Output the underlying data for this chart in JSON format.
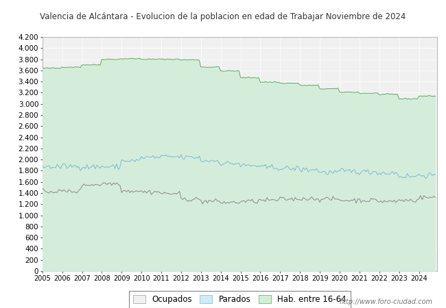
{
  "title": "Valencia de Alcántara - Evolucion de la poblacion en edad de Trabajar Noviembre de 2024",
  "title_color": "#333333",
  "ylabel": "",
  "xlabel": "",
  "ylim": [
    0,
    4200
  ],
  "yticks": [
    0,
    200,
    400,
    600,
    800,
    1000,
    1200,
    1400,
    1600,
    1800,
    2000,
    2200,
    2400,
    2600,
    2800,
    3000,
    3200,
    3400,
    3600,
    3800,
    4000,
    4200
  ],
  "years_annual": [
    2005,
    2006,
    2007,
    2008,
    2009,
    2010,
    2011,
    2012,
    2013,
    2014,
    2015,
    2016,
    2017,
    2018,
    2019,
    2020,
    2021,
    2022,
    2023,
    2024
  ],
  "hab1664_annual": [
    3640,
    3660,
    3700,
    3800,
    3810,
    3800,
    3800,
    3790,
    3660,
    3590,
    3470,
    3390,
    3370,
    3330,
    3270,
    3210,
    3190,
    3170,
    3090,
    3140
  ],
  "parados_annual": [
    1870,
    1880,
    1870,
    1870,
    1980,
    2040,
    2050,
    2040,
    1980,
    1930,
    1890,
    1860,
    1840,
    1820,
    1770,
    1790,
    1780,
    1760,
    1700,
    1720
  ],
  "ocupados_annual": [
    1430,
    1430,
    1550,
    1570,
    1440,
    1420,
    1390,
    1290,
    1250,
    1230,
    1250,
    1270,
    1290,
    1300,
    1290,
    1270,
    1270,
    1250,
    1270,
    1320
  ],
  "color_hab": "#d4edda",
  "color_parados": "#d0eaf8",
  "color_ocupados": "#f0f0f0",
  "line_hab": "#5aaa5a",
  "line_parados": "#7ab8d8",
  "line_ocupados": "#888888",
  "legend_labels": [
    "Ocupados",
    "Parados",
    "Hab. entre 16-64"
  ],
  "watermark": "http://www.foro-ciudad.com",
  "bg_plot": "#f0f0f0",
  "bg_fig": "#ffffff",
  "grid_color": "#ffffff",
  "xtick_years": [
    2005,
    2006,
    2007,
    2008,
    2009,
    2010,
    2011,
    2012,
    2013,
    2014,
    2015,
    2016,
    2017,
    2018,
    2019,
    2020,
    2021,
    2022,
    2023,
    2024
  ]
}
